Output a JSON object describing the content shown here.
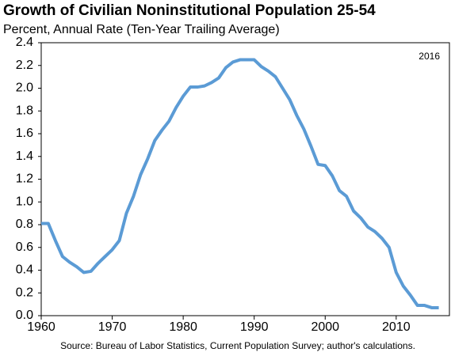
{
  "chart_data": {
    "type": "line",
    "title": "Growth of Civilian Noninstitutional Population 25-54",
    "subtitle": "Percent, Annual Rate (Ten-Year Trailing Average)",
    "annotation": "2016",
    "source": "Source: Bureau of Labor Statistics, Current Population Survey; author's calculations.",
    "color": "#5b9bd5",
    "x": [
      1960,
      1961,
      1962,
      1963,
      1964,
      1965,
      1966,
      1967,
      1968,
      1969,
      1970,
      1971,
      1972,
      1973,
      1974,
      1975,
      1976,
      1977,
      1978,
      1979,
      1980,
      1981,
      1982,
      1983,
      1984,
      1985,
      1986,
      1987,
      1988,
      1989,
      1990,
      1991,
      1992,
      1993,
      1994,
      1995,
      1996,
      1997,
      1998,
      1999,
      2000,
      2001,
      2002,
      2003,
      2004,
      2005,
      2006,
      2007,
      2008,
      2009,
      2010,
      2011,
      2012,
      2013,
      2014,
      2015,
      2016
    ],
    "values": [
      0.81,
      0.81,
      0.66,
      0.52,
      0.47,
      0.43,
      0.38,
      0.39,
      0.46,
      0.52,
      0.58,
      0.66,
      0.9,
      1.05,
      1.24,
      1.38,
      1.54,
      1.63,
      1.71,
      1.83,
      1.93,
      2.01,
      2.01,
      2.02,
      2.05,
      2.09,
      2.18,
      2.23,
      2.25,
      2.25,
      2.25,
      2.19,
      2.15,
      2.1,
      2.0,
      1.9,
      1.76,
      1.64,
      1.49,
      1.33,
      1.32,
      1.23,
      1.1,
      1.05,
      0.92,
      0.86,
      0.78,
      0.74,
      0.68,
      0.6,
      0.38,
      0.26,
      0.18,
      0.09,
      0.09,
      0.07,
      0.07
    ],
    "xlim": [
      1960,
      2017.5
    ],
    "xticks": [
      1960,
      1970,
      1980,
      1990,
      2000,
      2010
    ],
    "ylim": [
      0,
      2.4
    ],
    "yticks": [
      {
        "value": 0,
        "label": "0.0"
      },
      0.2,
      0.4,
      0.6,
      0.8,
      {
        "value": 1,
        "label": "1.0"
      },
      1.2,
      1.4,
      1.6,
      1.8,
      {
        "value": 2,
        "label": "2.0"
      },
      2.2,
      2.4
    ],
    "grid": false
  }
}
